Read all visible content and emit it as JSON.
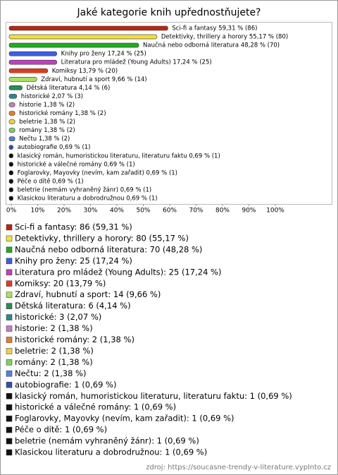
{
  "chart_data": {
    "type": "bar",
    "orientation": "horizontal",
    "title": "Jaké kategorie knih upřednostňujete?",
    "categories": [
      "Sci-fi a fantasy 59,31 % (86)",
      "Detektivky, thrillery a horory 55,17 % (80)",
      "Naučná nebo odborná literatura 48,28 % (70)",
      "Knihy pro ženy 17,24 % (25)",
      "Literatura pro mládež (Young Adults) 17,24 % (25)",
      "Komiksy 13,79 % (20)",
      "Zdraví, hubnutí a sport 9,66 % (14)",
      "Dětská literatura 4,14 % (6)",
      "historické 2,07 % (3)",
      "historie 1,38 % (2)",
      "historické romány 1,38 % (2)",
      "beletrie 1,38 % (2)",
      "romány 1,38 % (2)",
      "Nečtu 1,38 % (2)",
      "autobiografie 0,69 % (1)",
      "klasický román, humoristickou literaturu, literaturu faktu 0,69 % (1)",
      "historické a válečné romány 0,69 % (1)",
      "Foglarovky, Mayovky (nevím, kam zařadit) 0,69 % (1)",
      "Péče o dítě 0,69 % (1)",
      "beletrie (nemám vyhraněný žánr) 0,69 % (1)",
      "Klasickou literaturu a dobrodružnou 0,69 % (1)"
    ],
    "values": [
      59.31,
      55.17,
      48.28,
      17.24,
      17.24,
      13.79,
      9.66,
      4.14,
      2.07,
      1.38,
      1.38,
      1.38,
      1.38,
      1.38,
      0.69,
      0.69,
      0.69,
      0.69,
      0.69,
      0.69,
      0.69
    ],
    "colors": [
      "#b8260f",
      "#f0e040",
      "#22aa22",
      "#3a5fe8",
      "#c040c0",
      "#e03c1c",
      "#a8e060",
      "#2a8a5a",
      "#2a8a8a",
      "#c080c0",
      "#e08030",
      "#f0d040",
      "#80d060",
      "#5080e0",
      "#3050b0",
      "#111111",
      "#111111",
      "#111111",
      "#111111",
      "#111111",
      "#111111"
    ],
    "legend": [
      "Sci-fi a fantasy: 86 (59,31 %)",
      "Detektivky, thrillery a horory: 80 (55,17 %)",
      "Naučná nebo odborná literatura: 70 (48,28 %)",
      "Knihy pro ženy: 25 (17,24 %)",
      "Literatura pro mládež (Young Adults): 25 (17,24 %)",
      "Komiksy: 20 (13,79 %)",
      "Zdraví, hubnutí a sport: 14 (9,66 %)",
      "Dětská literatura: 6 (4,14 %)",
      "historické: 3 (2,07 %)",
      "historie: 2 (1,38 %)",
      "historické romány: 2 (1,38 %)",
      "beletrie: 2 (1,38 %)",
      "romány: 2 (1,38 %)",
      "Nečtu: 2 (1,38 %)",
      "autobiografie: 1 (0,69 %)",
      "klasický román, humoristickou literaturu, literaturu faktu: 1 (0,69 %)",
      "historické a válečné romány: 1 (0,69 %)",
      "Foglarovky, Mayovky (nevím, kam zařadit): 1 (0,69 %)",
      "Péče o dítě: 1 (0,69 %)",
      "beletrie (nemám vyhraněný žánr): 1 (0,69 %)",
      "Klasickou literaturu a dobrodružnou: 1 (0,69 %)"
    ],
    "xlim": [
      0,
      100
    ],
    "xticks": [
      {
        "value": 0,
        "label": "0%"
      },
      {
        "value": 10,
        "label": "10%"
      },
      {
        "value": 20,
        "label": "20%"
      },
      {
        "value": 30,
        "label": "30%"
      },
      {
        "value": 40,
        "label": "40%"
      },
      {
        "value": 50,
        "label": "50%"
      },
      {
        "value": 60,
        "label": "60%"
      },
      {
        "value": 70,
        "label": "70%"
      },
      {
        "value": 80,
        "label": "80%"
      },
      {
        "value": 90,
        "label": "90%"
      },
      {
        "value": 100,
        "label": "100%"
      }
    ],
    "source": "zdroj: https://soucasne-trendy-v-literature.vyplnto.cz"
  }
}
